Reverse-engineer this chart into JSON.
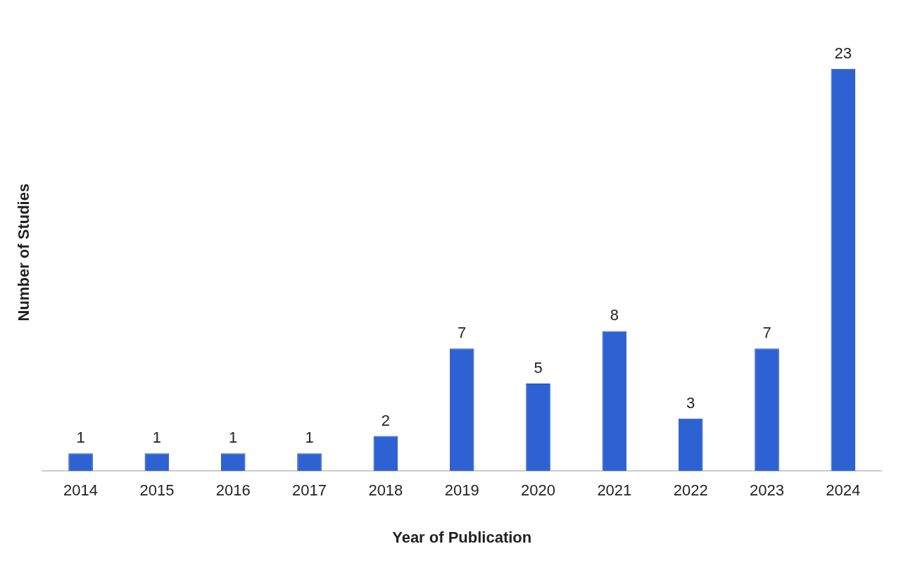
{
  "chart_data": {
    "type": "bar",
    "xlabel": "Year of Publication",
    "ylabel": "Number of Studies",
    "categories": [
      "2014",
      "2015",
      "2016",
      "2017",
      "2018",
      "2019",
      "2020",
      "2021",
      "2022",
      "2023",
      "2024"
    ],
    "values": [
      1,
      1,
      1,
      1,
      2,
      7,
      5,
      8,
      3,
      7,
      23
    ],
    "color": "#2e62d3",
    "data_labels": true,
    "grid": false,
    "legend": false
  }
}
